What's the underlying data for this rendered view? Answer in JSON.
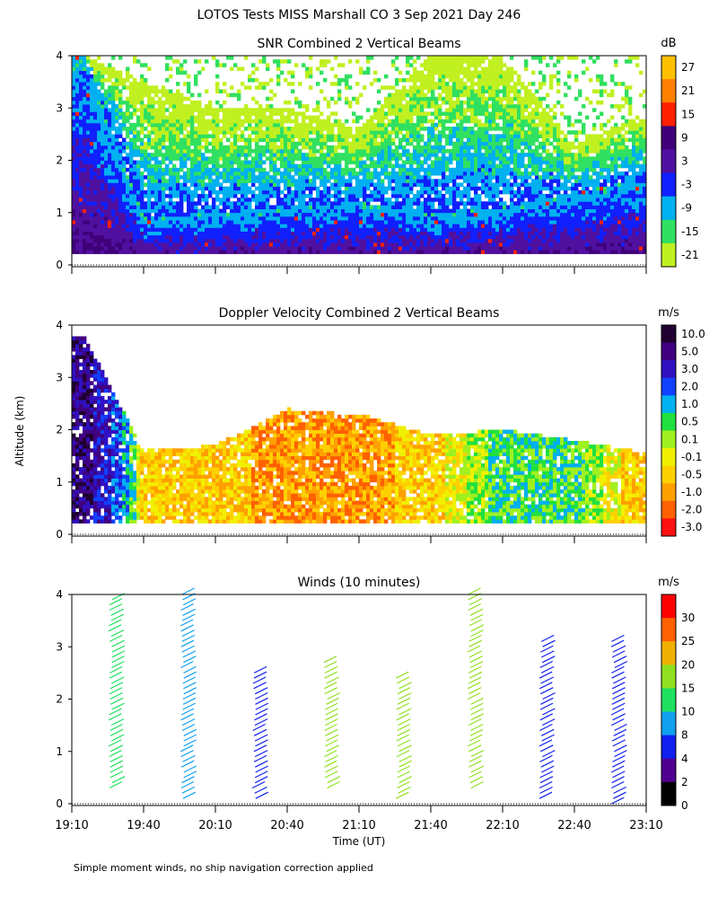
{
  "figure": {
    "title": "LOTOS Tests MISS Marshall CO   3 Sep 2021 Day 246",
    "xlabel": "Time (UT)",
    "ylabel": "Altitude (km)",
    "footnote": "Simple moment winds, no ship navigation correction applied",
    "x_ticks": [
      "19:10",
      "19:40",
      "20:10",
      "20:40",
      "21:10",
      "21:40",
      "22:10",
      "22:40",
      "23:10"
    ]
  },
  "chart_data": [
    {
      "type": "heatmap",
      "title": "SNR Combined 2 Vertical Beams",
      "xlabel": "Time (UT)",
      "ylabel": "Altitude (km)",
      "xlim": [
        "19:10",
        "23:10"
      ],
      "ylim": [
        0,
        4
      ],
      "y_ticks": [
        "0",
        "1",
        "2",
        "3",
        "4"
      ],
      "colorbar": {
        "unit": "dB",
        "labels": [
          "27",
          "21",
          "15",
          "9",
          "3",
          "-3",
          "-9",
          "-15",
          "-21"
        ],
        "colors": [
          "#ffc000",
          "#ff8000",
          "#ff2000",
          "#40007a",
          "#5010a0",
          "#1020ff",
          "#00b0f0",
          "#30e060",
          "#c0f020"
        ]
      },
      "profiles": [
        {
          "time": "19:15",
          "strong_layer_top_km": 4.0,
          "signal_top_km": 4.0
        },
        {
          "time": "19:40",
          "strong_layer_top_km": 0.9,
          "signal_top_km": 3.5
        },
        {
          "time": "20:10",
          "strong_layer_top_km": 1.0,
          "signal_top_km": 3.0
        },
        {
          "time": "20:40",
          "strong_layer_top_km": 1.1,
          "signal_top_km": 3.0
        },
        {
          "time": "21:10",
          "strong_layer_top_km": 1.2,
          "signal_top_km": 2.6
        },
        {
          "time": "21:40",
          "strong_layer_top_km": 1.0,
          "signal_top_km": 4.0
        },
        {
          "time": "22:10",
          "strong_layer_top_km": 1.1,
          "signal_top_km": 4.0
        },
        {
          "time": "22:40",
          "strong_layer_top_km": 1.4,
          "signal_top_km": 2.3
        },
        {
          "time": "23:05",
          "strong_layer_top_km": 1.6,
          "signal_top_km": 2.8
        }
      ]
    },
    {
      "type": "heatmap",
      "title": "Doppler Velocity Combined 2 Vertical Beams",
      "xlabel": "Time (UT)",
      "ylabel": "Altitude (km)",
      "xlim": [
        "19:10",
        "23:10"
      ],
      "ylim": [
        0,
        4
      ],
      "y_ticks": [
        "0",
        "1",
        "2",
        "3",
        "4"
      ],
      "colorbar": {
        "unit": "m/s",
        "labels": [
          "10.0",
          "5.0",
          "3.0",
          "2.0",
          "1.0",
          "0.5",
          "0.1",
          "-0.1",
          "-0.5",
          "-1.0",
          "-2.0",
          "-3.0"
        ],
        "colors": [
          "#200030",
          "#400080",
          "#3010c0",
          "#1040ff",
          "#00b0f0",
          "#20e040",
          "#a0f020",
          "#f0f000",
          "#ffd000",
          "#ffa000",
          "#ff6000",
          "#ff1010"
        ]
      },
      "profiles": [
        {
          "time": "19:15",
          "velocity_m_s": 5.0,
          "signal_top_km": 3.8
        },
        {
          "time": "19:40",
          "velocity_m_s": -0.5,
          "signal_top_km": 1.6
        },
        {
          "time": "20:10",
          "velocity_m_s": -0.5,
          "signal_top_km": 1.7
        },
        {
          "time": "20:40",
          "velocity_m_s": -1.0,
          "signal_top_km": 2.4
        },
        {
          "time": "21:10",
          "velocity_m_s": -1.0,
          "signal_top_km": 2.3
        },
        {
          "time": "21:40",
          "velocity_m_s": -0.5,
          "signal_top_km": 1.9
        },
        {
          "time": "22:10",
          "velocity_m_s": 0.5,
          "signal_top_km": 2.0
        },
        {
          "time": "22:40",
          "velocity_m_s": 0.5,
          "signal_top_km": 1.8
        },
        {
          "time": "23:05",
          "velocity_m_s": -0.5,
          "signal_top_km": 1.6
        }
      ]
    },
    {
      "type": "scatter",
      "title": "Winds (10 minutes)",
      "xlabel": "Time (UT)",
      "ylabel": "Altitude (km)",
      "xlim": [
        "19:10",
        "23:10"
      ],
      "ylim": [
        0,
        4
      ],
      "y_ticks": [
        "0",
        "1",
        "2",
        "3",
        "4"
      ],
      "colorbar": {
        "unit": "m/s",
        "labels": [
          "30",
          "25",
          "20",
          "15",
          "10",
          "8",
          "4",
          "2",
          "0"
        ],
        "colors": [
          "#ff0000",
          "#ff6000",
          "#f0b000",
          "#90e020",
          "#20e060",
          "#10a0f0",
          "#1020f0",
          "#500090",
          "#000000"
        ]
      },
      "series": [
        {
          "time": "19:25",
          "speed_m_s": 10,
          "bottom_km": 0.3,
          "top_km": 3.9
        },
        {
          "time": "19:55",
          "speed_m_s": 8,
          "bottom_km": 0.1,
          "top_km": 4.0
        },
        {
          "time": "20:25",
          "speed_m_s": 4,
          "bottom_km": 0.1,
          "top_km": 2.5
        },
        {
          "time": "20:55",
          "speed_m_s": 15,
          "bottom_km": 0.3,
          "top_km": 2.7
        },
        {
          "time": "21:25",
          "speed_m_s": 15,
          "bottom_km": 0.1,
          "top_km": 2.4
        },
        {
          "time": "21:55",
          "speed_m_s": 15,
          "bottom_km": 0.3,
          "top_km": 4.0
        },
        {
          "time": "22:25",
          "speed_m_s": 4,
          "bottom_km": 0.1,
          "top_km": 3.1
        },
        {
          "time": "22:55",
          "speed_m_s": 4,
          "bottom_km": 0.0,
          "top_km": 3.1
        }
      ]
    }
  ]
}
